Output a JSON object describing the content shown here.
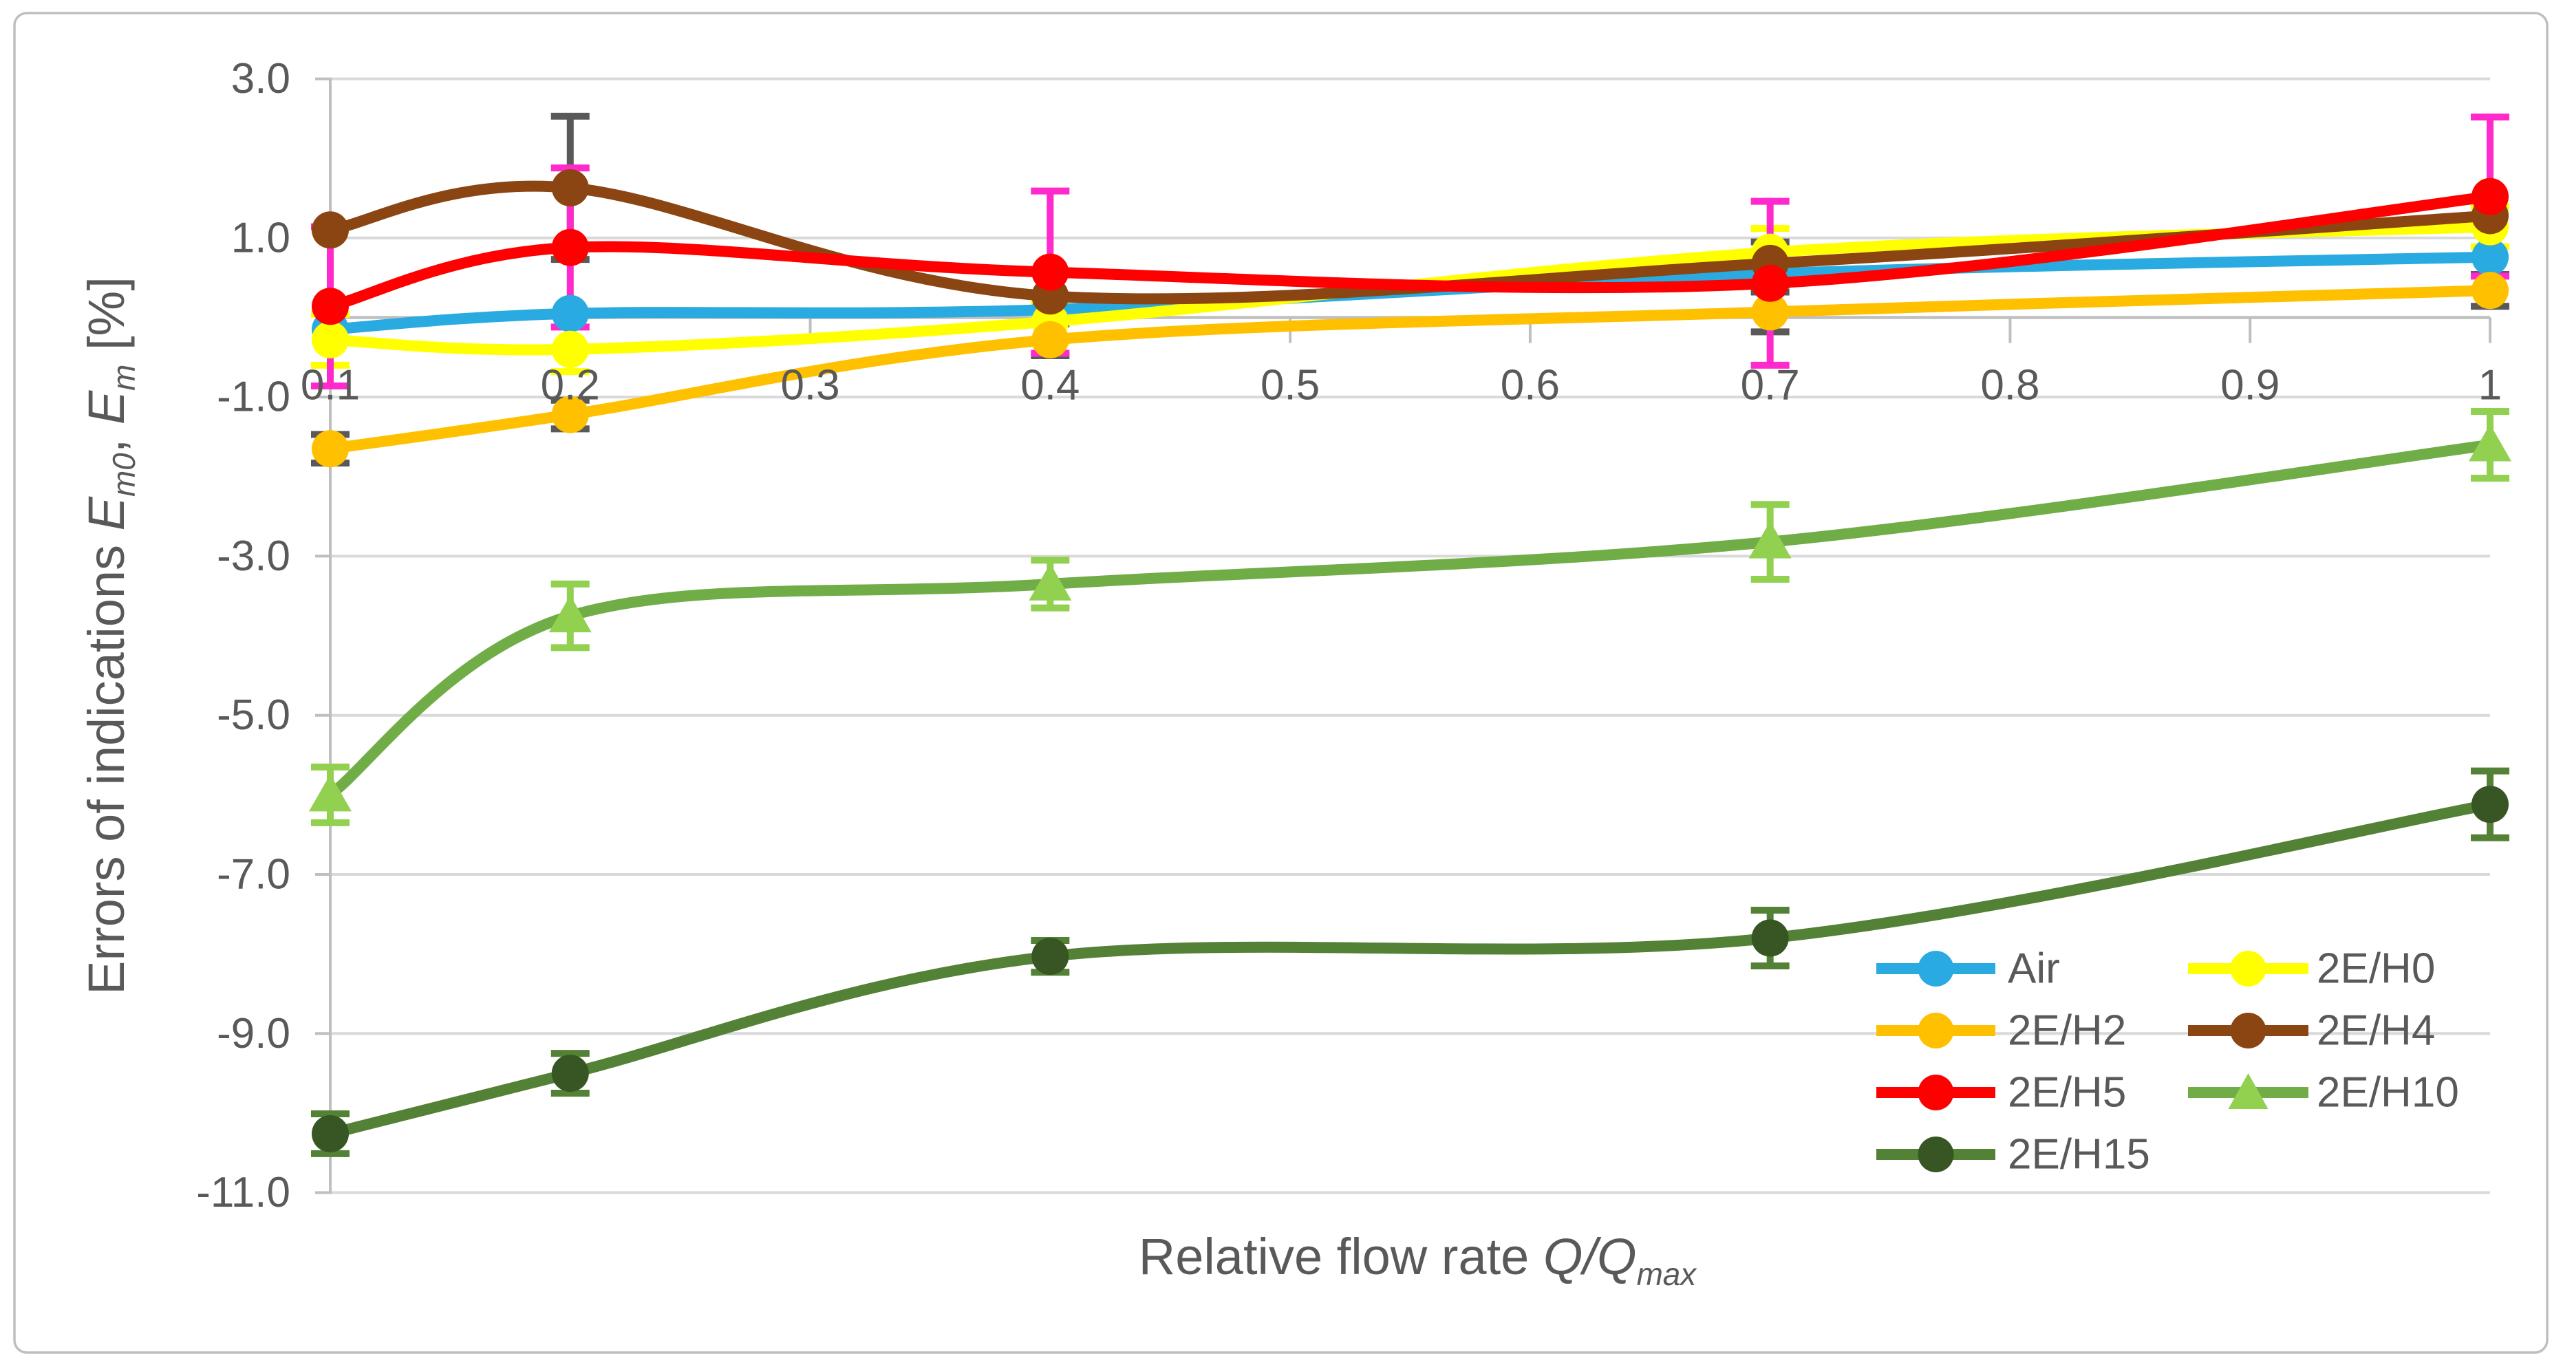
{
  "figure": {
    "background": "#FFFFFF",
    "border_color": "#BFBFBF",
    "grid_color": "#D9D9D9",
    "axis_color": "#BFBFBF",
    "text_color": "#595959"
  },
  "chart_data": {
    "type": "line",
    "title": "",
    "x": [
      0.1,
      0.2,
      0.4,
      0.7,
      1.0
    ],
    "x_axis": {
      "title_parts": [
        {
          "t": "Relative flow rate ",
          "italic": false,
          "sub": false
        },
        {
          "t": "Q/Q",
          "italic": true,
          "sub": false
        },
        {
          "t": "max",
          "italic": true,
          "sub": true
        }
      ],
      "tick_labels": [
        "0.1",
        "0.2",
        "0.3",
        "0.4",
        "0.5",
        "0.6",
        "0.7",
        "0.8",
        "0.9",
        "1"
      ],
      "tick_values": [
        0.1,
        0.2,
        0.3,
        0.4,
        0.5,
        0.6,
        0.7,
        0.8,
        0.9,
        1.0
      ],
      "range": [
        0.1,
        1.0
      ]
    },
    "y_axis": {
      "title_parts": [
        {
          "t": "Errors of indications ",
          "italic": false,
          "sub": false
        },
        {
          "t": "E",
          "italic": true,
          "sub": false
        },
        {
          "t": "m0",
          "italic": true,
          "sub": true
        },
        {
          "t": ", ",
          "italic": false,
          "sub": false
        },
        {
          "t": "E",
          "italic": true,
          "sub": false
        },
        {
          "t": "m",
          "italic": true,
          "sub": true
        },
        {
          "t": " [%]",
          "italic": false,
          "sub": false
        }
      ],
      "tick_labels": [
        "3.0",
        "1.0",
        "-1.0",
        "-3.0",
        "-5.0",
        "-7.0",
        "-9.0",
        "-11.0"
      ],
      "tick_values": [
        3,
        1,
        -1,
        -3,
        -5,
        -7,
        -9,
        -11
      ],
      "range": [
        -11,
        3
      ],
      "major_unit": 2,
      "grid": true
    },
    "series": [
      {
        "name": "Air",
        "color": "#29ABE2",
        "marker": "circle",
        "marker_color": "#29ABE2",
        "values": [
          -0.15,
          0.05,
          0.1,
          0.55,
          0.76
        ],
        "errors": null,
        "error_color": null
      },
      {
        "name": "2E/H0",
        "color": "#FFFF00",
        "marker": "circle",
        "marker_color": "#FFFF00",
        "values": [
          -0.28,
          -0.4,
          -0.05,
          0.82,
          1.14
        ],
        "errors": [
          0.32,
          0.28,
          0.25,
          0.3,
          0.25
        ],
        "error_color": "#FFFF00"
      },
      {
        "name": "2E/H2",
        "color": "#FFC000",
        "marker": "circle",
        "marker_color": "#FFC000",
        "values": [
          -1.65,
          -1.22,
          -0.28,
          0.07,
          0.34
        ],
        "errors": [
          0.18,
          0.18,
          0.2,
          0.25,
          0.2
        ],
        "error_color": "#595959"
      },
      {
        "name": "2E/H4",
        "color": "#8B4513",
        "marker": "circle",
        "marker_color": "#8B4513",
        "values": [
          1.1,
          1.63,
          0.27,
          0.68,
          1.28
        ],
        "errors": [
          0,
          0.9,
          0,
          0.27,
          0
        ],
        "error_color": "#595959"
      },
      {
        "name": "2E/H5",
        "color": "#FF0000",
        "marker": "circle",
        "marker_color": "#FF0000",
        "values": [
          0.14,
          0.88,
          0.57,
          0.43,
          1.52
        ],
        "errors": [
          1.0,
          1.0,
          1.02,
          1.03,
          1.0
        ],
        "error_color": "#FF29CC"
      },
      {
        "name": "2E/H10",
        "color": "#70AD47",
        "marker": "triangle",
        "marker_color": "#92D050",
        "values": [
          -6.0,
          -3.75,
          -3.35,
          -2.82,
          -1.6
        ],
        "errors": [
          0.35,
          0.4,
          0.3,
          0.47,
          0.42
        ],
        "error_color": "#92D050"
      },
      {
        "name": "2E/H15",
        "color": "#538135",
        "marker": "circle",
        "marker_color": "#375623",
        "values": [
          -10.26,
          -9.5,
          -8.03,
          -7.8,
          -6.12
        ],
        "errors": [
          0.25,
          0.25,
          0.2,
          0.35,
          0.42
        ],
        "error_color": "#538135"
      }
    ],
    "legend": {
      "position": "inside-bottom-right",
      "columns": [
        [
          "Air",
          "2E/H2",
          "2E/H5",
          "2E/H15"
        ],
        [
          "2E/H0",
          "2E/H4",
          "2E/H10"
        ]
      ]
    }
  }
}
